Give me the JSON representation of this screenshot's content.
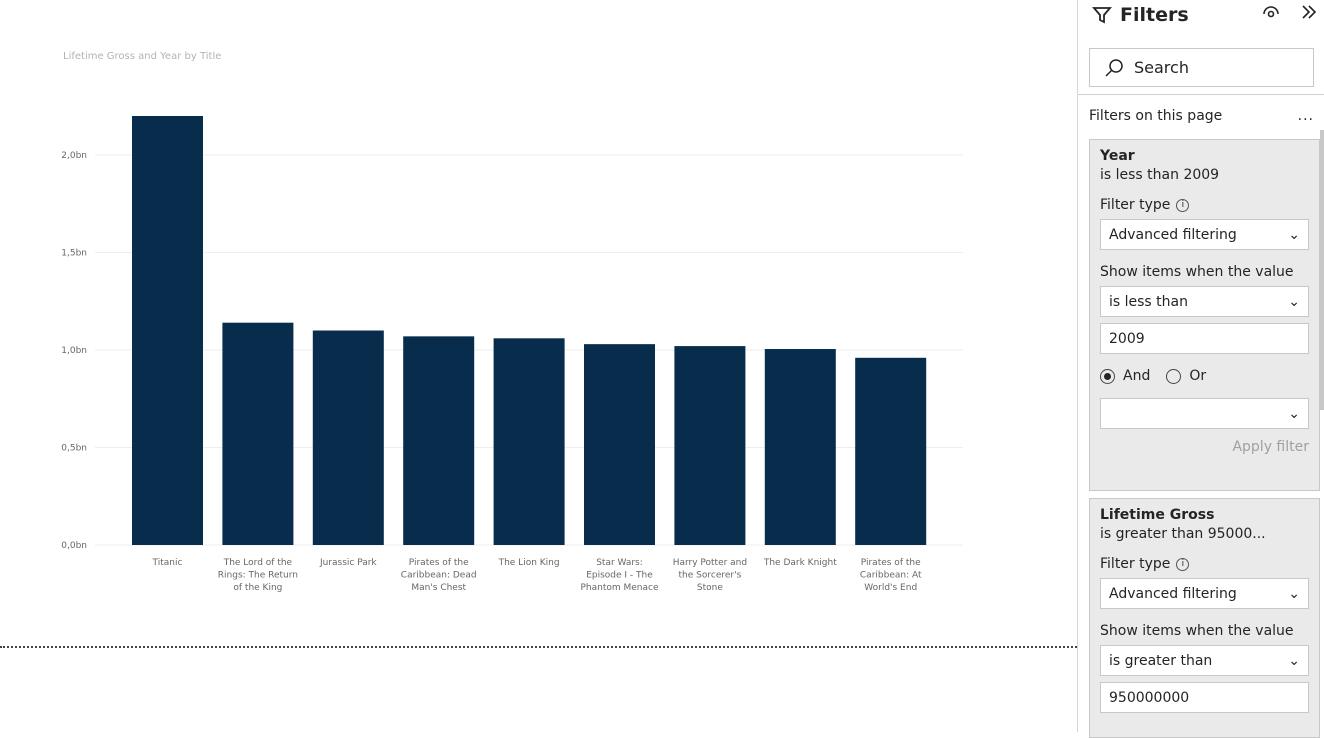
{
  "chart_data": {
    "type": "bar",
    "title": "Lifetime Gross and Year by Title",
    "categories": [
      "Titanic",
      "The Lord of the Rings: The Return of the King",
      "Jurassic Park",
      "Pirates of the Caribbean: Dead Man's Chest",
      "The Lion King",
      "Star Wars: Episode I - The Phantom Menace",
      "Harry Potter and the Sorcerer's Stone",
      "The Dark Knight",
      "Pirates of the Caribbean: At World's End"
    ],
    "values": [
      2.2,
      1.14,
      1.1,
      1.07,
      1.06,
      1.03,
      1.02,
      1.005,
      0.96
    ],
    "unit": "bn",
    "yticks": [
      "0,0bn",
      "0,5bn",
      "1,0bn",
      "1,5bn",
      "2,0bn"
    ],
    "ylim": [
      0,
      2.2
    ],
    "grid": true,
    "bar_color": "#072c4c"
  },
  "filters": {
    "title": "Filters",
    "search_placeholder": "Search",
    "section": "Filters on this page",
    "more": "...",
    "cards": [
      {
        "title": "Year",
        "summary": "is less than 2009",
        "filter_type_label": "Filter type",
        "filter_type": "Advanced filtering",
        "show_label": "Show items when the value",
        "condition": "is less than",
        "value": "2009",
        "and": "And",
        "or": "Or",
        "second_condition": "",
        "apply": "Apply filter"
      },
      {
        "title": "Lifetime Gross",
        "summary": "is greater than 95000...",
        "filter_type_label": "Filter type",
        "filter_type": "Advanced filtering",
        "show_label": "Show items when the value",
        "condition": "is greater than",
        "value": "950000000"
      }
    ]
  }
}
